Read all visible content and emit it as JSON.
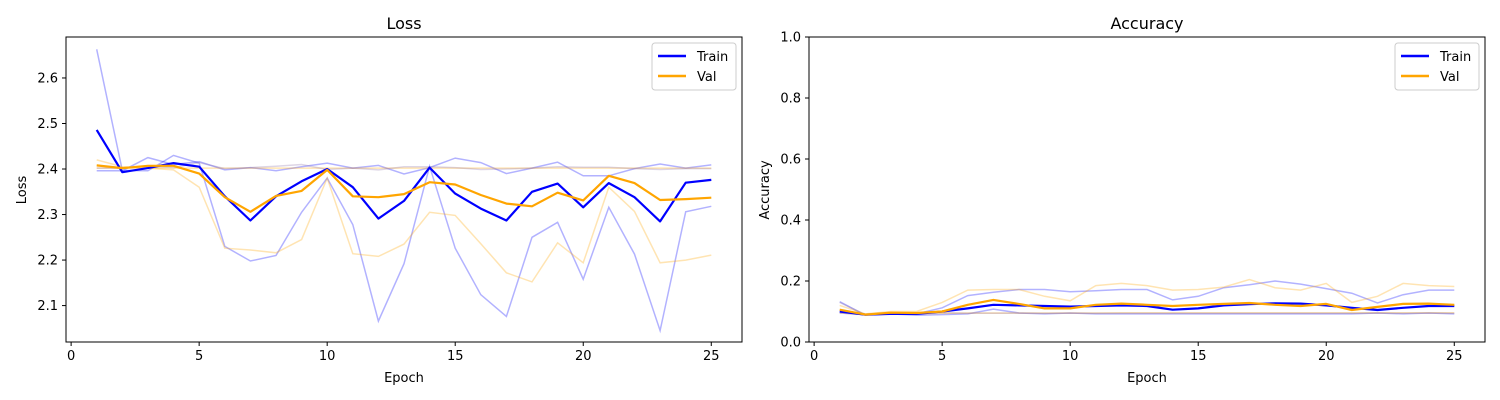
{
  "chart_data": [
    {
      "type": "line",
      "title": "Loss",
      "xlabel": "Epoch",
      "ylabel": "Loss",
      "xlim": [
        0,
        25
      ],
      "ylim": [
        2.02,
        2.69
      ],
      "xticks": [
        0,
        5,
        10,
        15,
        20,
        25
      ],
      "yticks": [
        2.1,
        2.2,
        2.3,
        2.4,
        2.5,
        2.6
      ],
      "grid": false,
      "legend": "top-right",
      "x": [
        1,
        2,
        3,
        4,
        5,
        6,
        7,
        8,
        9,
        10,
        11,
        12,
        13,
        14,
        15,
        16,
        17,
        18,
        19,
        20,
        21,
        22,
        23,
        24,
        25
      ],
      "series": [
        {
          "name": "Train",
          "color": "#0000ff",
          "values": [
            2.486,
            2.393,
            2.402,
            2.413,
            2.405,
            2.34,
            2.287,
            2.34,
            2.373,
            2.4,
            2.36,
            2.291,
            2.33,
            2.403,
            2.346,
            2.313,
            2.287,
            2.35,
            2.368,
            2.316,
            2.369,
            2.338,
            2.285,
            2.37,
            2.376
          ]
        },
        {
          "name": "Val",
          "color": "#ffa500",
          "values": [
            2.408,
            2.402,
            2.407,
            2.407,
            2.39,
            2.338,
            2.306,
            2.341,
            2.352,
            2.398,
            2.34,
            2.338,
            2.345,
            2.371,
            2.366,
            2.343,
            2.324,
            2.318,
            2.348,
            2.331,
            2.385,
            2.369,
            2.332,
            2.334,
            2.337
          ]
        }
      ],
      "faint_series": [
        {
          "color": "#0000ff",
          "values": [
            2.663,
            2.397,
            2.396,
            2.43,
            2.413,
            2.23,
            2.198,
            2.21,
            2.305,
            2.38,
            2.278,
            2.066,
            2.192,
            2.406,
            2.226,
            2.124,
            2.076,
            2.25,
            2.283,
            2.158,
            2.316,
            2.213,
            2.045,
            2.306,
            2.318
          ]
        },
        {
          "color": "#0000ff",
          "values": [
            2.396,
            2.396,
            2.425,
            2.41,
            2.416,
            2.398,
            2.403,
            2.396,
            2.405,
            2.413,
            2.402,
            2.408,
            2.389,
            2.403,
            2.424,
            2.414,
            2.39,
            2.402,
            2.415,
            2.385,
            2.385,
            2.401,
            2.411,
            2.402,
            2.409
          ]
        },
        {
          "color": "#ffa500",
          "values": [
            2.42,
            2.405,
            2.402,
            2.398,
            2.36,
            2.226,
            2.222,
            2.216,
            2.245,
            2.38,
            2.214,
            2.208,
            2.235,
            2.305,
            2.298,
            2.236,
            2.172,
            2.152,
            2.238,
            2.194,
            2.36,
            2.307,
            2.194,
            2.2,
            2.211
          ]
        },
        {
          "color": "#ffa500",
          "values": [
            2.402,
            2.402,
            2.402,
            2.402,
            2.402,
            2.402,
            2.402,
            2.402,
            2.402,
            2.402,
            2.402,
            2.402,
            2.402,
            2.402,
            2.402,
            2.402,
            2.402,
            2.402,
            2.402,
            2.402,
            2.402,
            2.402,
            2.402,
            2.402,
            2.402
          ]
        },
        {
          "color": "#8f75a8",
          "values": [
            2.402,
            2.402,
            2.406,
            2.403,
            2.414,
            2.401,
            2.403,
            2.406,
            2.41,
            2.399,
            2.402,
            2.398,
            2.405,
            2.405,
            2.403,
            2.399,
            2.4,
            2.402,
            2.405,
            2.404,
            2.404,
            2.401,
            2.399,
            2.401,
            2.401
          ]
        }
      ]
    },
    {
      "type": "line",
      "title": "Accuracy",
      "xlabel": "Epoch",
      "ylabel": "Accuracy",
      "xlim": [
        0,
        25
      ],
      "ylim": [
        0.0,
        1.0
      ],
      "xticks": [
        0,
        5,
        10,
        15,
        20,
        25
      ],
      "yticks": [
        0.0,
        0.2,
        0.4,
        0.6,
        0.8,
        1.0
      ],
      "grid": false,
      "legend": "top-right",
      "x": [
        1,
        2,
        3,
        4,
        5,
        6,
        7,
        8,
        9,
        10,
        11,
        12,
        13,
        14,
        15,
        16,
        17,
        18,
        19,
        20,
        21,
        22,
        23,
        24,
        25
      ],
      "series": [
        {
          "name": "Train",
          "color": "#0000ff",
          "values": [
            0.1,
            0.09,
            0.092,
            0.092,
            0.1,
            0.11,
            0.122,
            0.12,
            0.118,
            0.116,
            0.118,
            0.12,
            0.118,
            0.106,
            0.11,
            0.12,
            0.124,
            0.127,
            0.126,
            0.12,
            0.112,
            0.105,
            0.112,
            0.118,
            0.118
          ]
        },
        {
          "name": "Val",
          "color": "#ffa500",
          "values": [
            0.106,
            0.09,
            0.096,
            0.095,
            0.1,
            0.122,
            0.138,
            0.125,
            0.11,
            0.11,
            0.122,
            0.126,
            0.122,
            0.118,
            0.122,
            0.125,
            0.128,
            0.122,
            0.118,
            0.125,
            0.105,
            0.115,
            0.125,
            0.126,
            0.122
          ]
        }
      ],
      "faint_series": [
        {
          "color": "#0000ff",
          "values": [
            0.132,
            0.088,
            0.092,
            0.092,
            0.112,
            0.152,
            0.163,
            0.172,
            0.172,
            0.165,
            0.168,
            0.172,
            0.172,
            0.138,
            0.15,
            0.178,
            0.188,
            0.2,
            0.19,
            0.175,
            0.16,
            0.128,
            0.155,
            0.17,
            0.17
          ]
        },
        {
          "color": "#0000ff",
          "values": [
            0.095,
            0.09,
            0.092,
            0.088,
            0.09,
            0.092,
            0.108,
            0.095,
            0.092,
            0.095,
            0.092,
            0.092,
            0.092,
            0.092,
            0.092,
            0.092,
            0.092,
            0.092,
            0.092,
            0.092,
            0.092,
            0.095,
            0.092,
            0.095,
            0.092
          ]
        },
        {
          "color": "#ffa500",
          "values": [
            0.12,
            0.092,
            0.1,
            0.1,
            0.13,
            0.17,
            0.172,
            0.172,
            0.15,
            0.135,
            0.185,
            0.192,
            0.185,
            0.17,
            0.172,
            0.18,
            0.205,
            0.178,
            0.17,
            0.192,
            0.13,
            0.15,
            0.192,
            0.185,
            0.182
          ]
        },
        {
          "color": "#ffa500",
          "values": [
            0.095,
            0.09,
            0.095,
            0.092,
            0.094,
            0.095,
            0.095,
            0.095,
            0.095,
            0.095,
            0.095,
            0.096,
            0.096,
            0.096,
            0.096,
            0.096,
            0.096,
            0.096,
            0.096,
            0.096,
            0.096,
            0.096,
            0.096,
            0.096,
            0.096
          ]
        },
        {
          "color": "#8f75a8",
          "values": [
            0.13,
            0.09,
            0.092,
            0.092,
            0.096,
            0.094,
            0.094,
            0.094,
            0.094,
            0.094,
            0.094,
            0.094,
            0.094,
            0.094,
            0.094,
            0.094,
            0.094,
            0.094,
            0.094,
            0.094,
            0.094,
            0.094,
            0.094,
            0.094,
            0.094
          ]
        }
      ]
    }
  ]
}
